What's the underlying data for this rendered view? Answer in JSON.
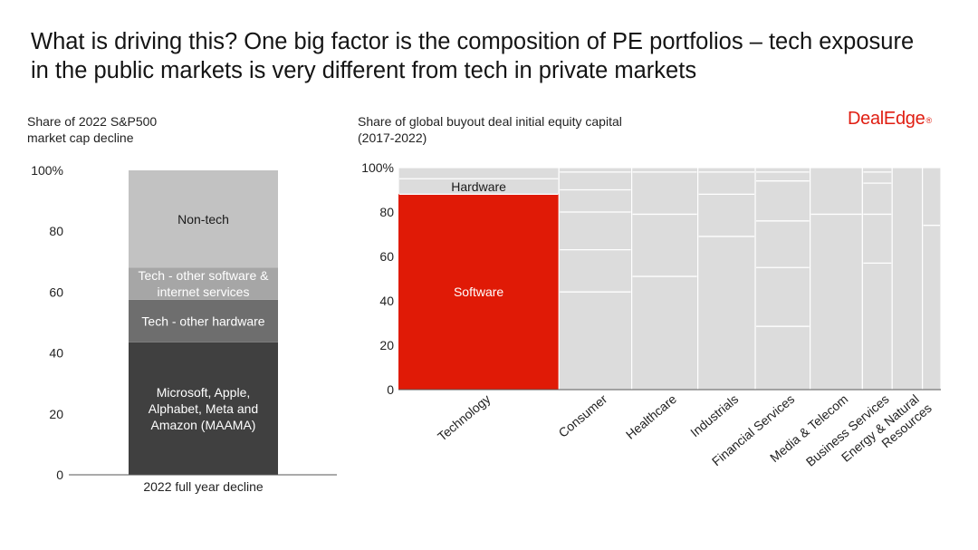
{
  "headline": "What is driving this? One big factor is the composition of PE portfolios – tech exposure in the public markets is very different from tech in private markets",
  "brand": {
    "name": "DealEdge",
    "mark": "®",
    "color": "#e01e12"
  },
  "chart_data": [
    {
      "type": "bar",
      "stacked": true,
      "title": "Share of 2022 S&P500 market cap decline",
      "title_lines": [
        "Share of 2022 S&P500",
        "market cap decline"
      ],
      "categories": [
        "2022 full year decline"
      ],
      "ylim": [
        0,
        100
      ],
      "yticks": [
        "0",
        "20",
        "40",
        "60",
        "80",
        "100%"
      ],
      "series": [
        {
          "name": "Microsoft, Apple, Alphabet, Meta and Amazon (MAAMA)",
          "label_lines": [
            "Microsoft, Apple,",
            "Alphabet, Meta and",
            "Amazon (MAAMA)"
          ],
          "values": [
            43.5
          ],
          "color": "#404040"
        },
        {
          "name": "Tech - other hardware",
          "label_lines": [
            "Tech - other hardware"
          ],
          "values": [
            14
          ],
          "color": "#6e6e6e"
        },
        {
          "name": "Tech - other software & internet services",
          "label_lines": [
            "Tech - other software &",
            "internet services"
          ],
          "values": [
            10.5
          ],
          "color": "#a6a6a6"
        },
        {
          "name": "Non-tech",
          "label_lines": [
            "Non-tech"
          ],
          "values": [
            32
          ],
          "color": "#c2c2c2"
        }
      ]
    },
    {
      "type": "bar",
      "variant": "marimekko",
      "title": "Share of global buyout deal initial equity capital (2017-2022)",
      "title_lines": [
        "Share of global buyout deal initial equity capital",
        "(2017-2022)"
      ],
      "ylim": [
        0,
        100
      ],
      "yticks": [
        "0",
        "20",
        "40",
        "60",
        "80",
        "100%"
      ],
      "categories": [
        "Technology",
        "Consumer",
        "Healthcare",
        "Industrials",
        "Financial Services",
        "Media & Telecom",
        "Business Services",
        "Energy & Natural Resources",
        ""
      ],
      "category_label_lines": [
        [
          "Technology"
        ],
        [
          "Consumer"
        ],
        [
          "Healthcare"
        ],
        [
          "Industrials"
        ],
        [
          "Financial Services"
        ],
        [
          "Media & Telecom"
        ],
        [
          "Business Services"
        ],
        [
          "Energy & Natural",
          "Resources"
        ],
        []
      ],
      "column_widths": [
        31.3,
        14.2,
        12.9,
        11.2,
        10.7,
        10.2,
        5.8,
        5.9,
        3.6
      ],
      "segment_boundaries": [
        [
          88,
          95
        ],
        [
          44,
          63,
          80,
          90,
          98
        ],
        [
          51,
          79,
          98
        ],
        [
          69,
          88,
          98
        ],
        [
          28.5,
          55,
          76,
          94,
          98
        ],
        [
          79
        ],
        [
          57,
          79,
          93,
          98
        ],
        [],
        [
          74
        ]
      ],
      "highlight": [
        {
          "column": "Technology",
          "name": "Software",
          "range": [
            0,
            88
          ],
          "color": "#e01a06",
          "label_color": "#ffffff"
        },
        {
          "column": "Technology",
          "name": "Hardware",
          "range": [
            88,
            95
          ],
          "color": "#dcdcdc",
          "label_color": "#1a1a1a"
        }
      ],
      "base_color": "#dcdcdc"
    }
  ]
}
